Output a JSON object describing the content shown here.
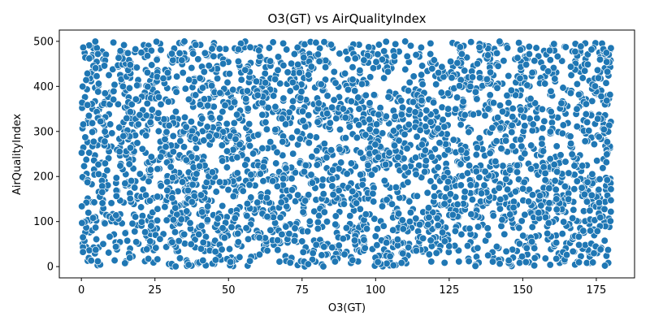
{
  "chart_data": {
    "type": "scatter",
    "title": "O3(GT) vs AirQualityIndex",
    "xlabel": "O3(GT)",
    "ylabel": "AirQualityIndex",
    "xlim": [
      -7.5,
      188
    ],
    "ylim": [
      -25,
      525
    ],
    "xticks": [
      0,
      25,
      50,
      75,
      100,
      125,
      150,
      175
    ],
    "yticks": [
      0,
      100,
      200,
      300,
      400,
      500
    ],
    "x_range_of_points": [
      0,
      180
    ],
    "y_range_of_points": [
      0,
      500
    ],
    "point_color": "#1f77b4",
    "point_edge_color": "#ffffff",
    "grid": false,
    "legend": "none"
  }
}
